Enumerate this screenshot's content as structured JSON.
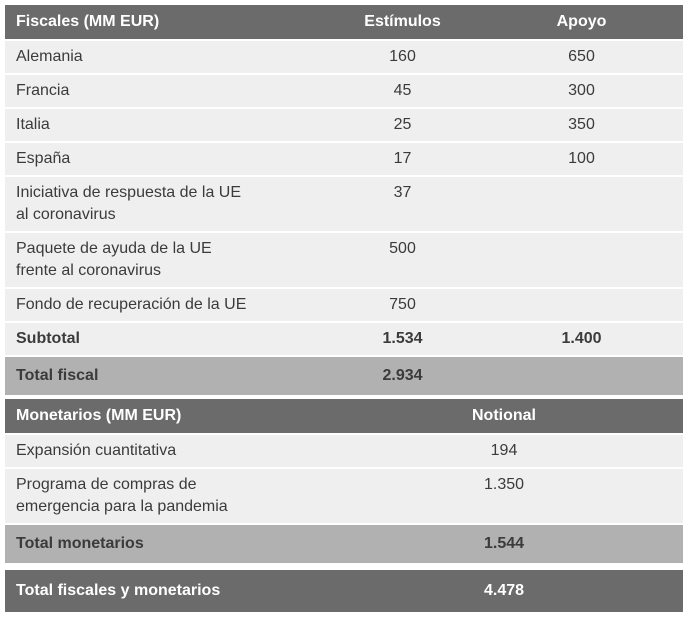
{
  "table": {
    "fiscal": {
      "header": {
        "label": "Fiscales (MM EUR)",
        "col1": "Estímulos",
        "col2": "Apoyo"
      },
      "rows": [
        {
          "label": "Alemania",
          "estimulos": "160",
          "apoyo": "650"
        },
        {
          "label": "Francia",
          "estimulos": "45",
          "apoyo": "300"
        },
        {
          "label": "Italia",
          "estimulos": "25",
          "apoyo": "350"
        },
        {
          "label": "España",
          "estimulos": "17",
          "apoyo": "100"
        },
        {
          "label": "Iniciativa de respuesta de la UE\nal coronavirus",
          "estimulos": "37"
        },
        {
          "label": "Paquete de ayuda de la UE\nfrente al coronavirus",
          "estimulos": "500"
        },
        {
          "label": "Fondo de recuperación de la UE",
          "estimulos": "750"
        }
      ],
      "subtotal": {
        "label": "Subtotal",
        "estimulos": "1.534",
        "apoyo": "1.400"
      },
      "total": {
        "label": "Total fiscal",
        "value": "2.934"
      }
    },
    "monetary": {
      "header": {
        "label": "Monetarios (MM EUR)",
        "col1": "Notional"
      },
      "rows": [
        {
          "label": "Expansión cuantitativa",
          "value": "194"
        },
        {
          "label": "Programa de compras de\nemergencia para la pandemia",
          "value": "1.350"
        }
      ],
      "total": {
        "label": "Total monetarios",
        "value": "1.544"
      }
    },
    "grand_total": {
      "label": "Total fiscales y monetarios",
      "value": "4.478"
    }
  },
  "colors": {
    "header_bg": "#6b6b6b",
    "header_text": "#ffffff",
    "row_bg": "#efefef",
    "total_bg": "#b1b1b1",
    "text": "#3b3b3b"
  },
  "chart_data": {
    "type": "table",
    "units": "MM EUR",
    "sections": [
      {
        "header": [
          "Fiscales (MM EUR)",
          "Estímulos",
          "Apoyo"
        ],
        "rows": [
          [
            "Alemania",
            160,
            650
          ],
          [
            "Francia",
            45,
            300
          ],
          [
            "Italia",
            25,
            350
          ],
          [
            "España",
            17,
            100
          ],
          [
            "Iniciativa de respuesta de la UE al coronavirus",
            37,
            null
          ],
          [
            "Paquete de ayuda de la UE frente al coronavirus",
            500,
            null
          ],
          [
            "Fondo de recuperación de la UE",
            750,
            null
          ],
          [
            "Subtotal",
            1534,
            1400
          ],
          [
            "Total fiscal",
            2934,
            null
          ]
        ]
      },
      {
        "header": [
          "Monetarios (MM EUR)",
          "Notional"
        ],
        "rows": [
          [
            "Expansión cuantitativa",
            194
          ],
          [
            "Programa de compras de emergencia para la pandemia",
            1350
          ],
          [
            "Total monetarios",
            1544
          ]
        ]
      },
      {
        "header": [],
        "rows": [
          [
            "Total fiscales y monetarios",
            4478
          ]
        ]
      }
    ]
  }
}
